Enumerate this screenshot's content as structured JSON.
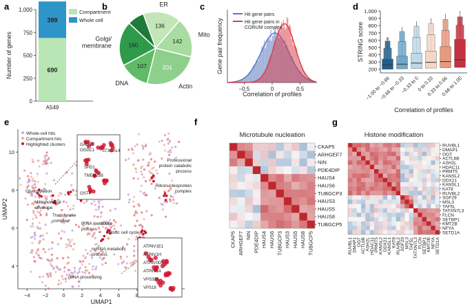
{
  "colors": {
    "compartment": "#b8e6b4",
    "whole_cell": "#2e95c8",
    "hist_all": "#5577c0",
    "hist_corum": "#d8404c",
    "pie": [
      "#c2e6b8",
      "#a8dca0",
      "#8cd08c",
      "#5fbb66",
      "#2f9a4a",
      "#1f7a3a"
    ],
    "box": [
      "#1f5f8a",
      "#6ea8cc",
      "#bdd9ea",
      "#f4d6c6",
      "#e89a80",
      "#c43240"
    ],
    "heat_hi": "#c0272d",
    "heat_lo": "#2b6aa8"
  },
  "panel_labels": {
    "a": "a",
    "b": "b",
    "c": "c",
    "d": "d",
    "e": "e",
    "f": "f",
    "g": "g"
  },
  "chart_data": [
    {
      "id": "a",
      "type": "bar",
      "stacked": true,
      "categories": [
        "A549"
      ],
      "series": [
        {
          "name": "Compartment",
          "values": [
            690
          ]
        },
        {
          "name": "Whole cell",
          "values": [
            399
          ]
        }
      ],
      "ylabel": "Number of genes",
      "ylim": [
        0,
        1000
      ],
      "yticks": [
        "0",
        "250",
        "500",
        "750",
        "1,000"
      ],
      "legend": [
        "Compartment",
        "Whole cell"
      ]
    },
    {
      "id": "b",
      "type": "pie",
      "labels": [
        "ER",
        "Mito",
        "Actin",
        "DNA",
        "Golgi/ membrane",
        ""
      ],
      "values": [
        136,
        142,
        201,
        107,
        160,
        60
      ],
      "value_labels": [
        "136",
        "142",
        "201",
        "107",
        "160",
        ""
      ]
    },
    {
      "id": "c",
      "type": "histogram",
      "xlabel": "Correlation of profiles",
      "ylabel": "Gene pair frequency",
      "xticks": [
        "−0.5",
        "0",
        "0.5"
      ],
      "xlim": [
        -0.8,
        0.8
      ],
      "series": [
        {
          "name": "Hit gene pairs",
          "mean": 0.05,
          "sd": 0.25
        },
        {
          "name": "Hit gene pairs in CORUM complex",
          "mean": 0.22,
          "sd": 0.19
        }
      ],
      "legend": [
        "Hit gene pairs",
        "Hit gene pairs in CORUM complex"
      ]
    },
    {
      "id": "d",
      "type": "boxplot",
      "categories": [
        "−1.00 to −0.66",
        "−0.66 to −0.33",
        "−0.33 to 0",
        "0 to 0.33",
        "0.33 to 0.66",
        "0.66 to 1.00"
      ],
      "medians": [
        260,
        270,
        285,
        295,
        305,
        330
      ],
      "q1": [
        200,
        205,
        210,
        215,
        220,
        225
      ],
      "q3": [
        340,
        380,
        420,
        450,
        510,
        610
      ],
      "whisker_hi": [
        640,
        780,
        860,
        900,
        960,
        1000
      ],
      "ylabel": "STRING score",
      "xlabel": "Correlation of profiles",
      "yticks": [
        "200",
        "300",
        "400",
        "500",
        "600",
        "700",
        "800",
        "900",
        "1,000"
      ],
      "ylim": [
        150,
        1000
      ]
    },
    {
      "id": "e",
      "type": "scatter",
      "xlabel": "UMAP1",
      "ylabel": "UMAP2",
      "xticks": [
        "−4",
        "−2",
        "0",
        "2",
        "4",
        "6",
        "8",
        "10",
        "12"
      ],
      "yticks": [
        "4",
        "6",
        "8",
        "10"
      ],
      "legend": [
        "Whole-cell hits",
        "Compartment hits",
        "Highlighted clusters"
      ],
      "annotations": [
        "Glycosylation",
        "Mitochondrial envelope",
        "Transferase complex",
        "Professional protein catabolic process",
        "Ribonucleoprotein complex",
        "tRNA metabolic process",
        "Mitotic cell cycle",
        "ncRNA metabolic process",
        "Process utilizing autophagic mechanism",
        "rRNA processing"
      ],
      "inset_top": [
        "GALNT",
        "OGDC1",
        "ST3GAL4",
        "SPD1",
        "TMEM258",
        "OST4"
      ],
      "inset_bottom": [
        "ATP6V1E1",
        "ATP6V1H",
        "ATP6V0D1",
        "ATP6V1A",
        "VPS33A",
        "VPS18"
      ]
    },
    {
      "id": "f",
      "type": "heatmap",
      "title": "Microtubule nucleation",
      "labels": [
        "CKAP5",
        "ARHGEF7",
        "NIN",
        "PDE4DIP",
        "HAUS4",
        "HAUS6",
        "TUBGCP3",
        "HAUS3",
        "HAUS5",
        "HAUS8",
        "TUBGCP5"
      ]
    },
    {
      "id": "g",
      "type": "heatmap",
      "title": "Histone modification",
      "labels": [
        "RUVBL1",
        "DMAP1",
        "OGT",
        "ACTL6B",
        "ASH2L",
        "HDAC11",
        "PRMT5",
        "KANSL2",
        "DDX21",
        "KANSL1",
        "KAT8",
        "RUVBL2",
        "SGF29",
        "MSL3",
        "TAF5L",
        "TATXN7L3",
        "FLCN",
        "SETBP1",
        "KMT2B",
        "NFYA",
        "SETD1A"
      ]
    }
  ]
}
